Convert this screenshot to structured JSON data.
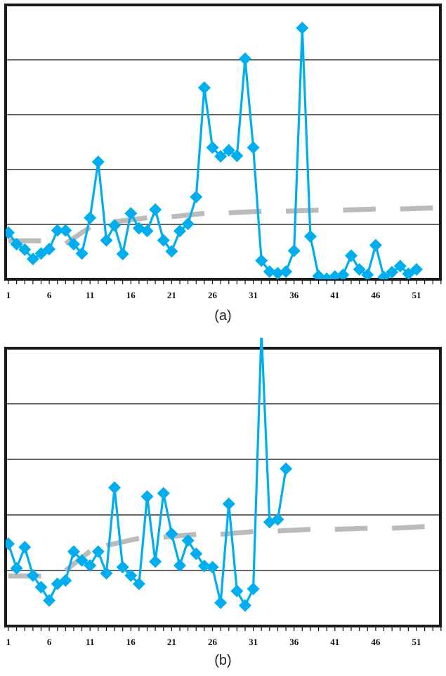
{
  "chart_data": [
    {
      "type": "line",
      "panel": "a",
      "caption": "(a)",
      "title": "",
      "xlabel": "",
      "ylabel": "",
      "x_tick_labels": [
        "1",
        "6",
        "11",
        "16",
        "21",
        "26",
        "31",
        "36",
        "41",
        "46",
        "51"
      ],
      "xlim": [
        1,
        54
      ],
      "ylim": [
        0,
        5
      ],
      "grid": {
        "horizontal": true,
        "lines": [
          1,
          2,
          3,
          4
        ]
      },
      "legend": null,
      "x": [
        1,
        2,
        3,
        4,
        5,
        6,
        7,
        8,
        9,
        10,
        11,
        12,
        13,
        14,
        15,
        16,
        17,
        18,
        19,
        20,
        21,
        22,
        23,
        24,
        25,
        26,
        27,
        28,
        29,
        30,
        31,
        32,
        33,
        34,
        35,
        36,
        37,
        38,
        39,
        40,
        41,
        42,
        43,
        44,
        45,
        46,
        47,
        48,
        49,
        50,
        51
      ],
      "series": [
        {
          "name": "observed",
          "style": "line-diamond",
          "color": "#00AEEF",
          "values": [
            0.85,
            0.64,
            0.54,
            0.37,
            0.47,
            0.55,
            0.89,
            0.89,
            0.64,
            0.47,
            1.12,
            2.14,
            0.71,
            0.98,
            0.46,
            1.2,
            0.93,
            0.88,
            1.27,
            0.71,
            0.51,
            0.88,
            1.01,
            1.5,
            3.49,
            2.4,
            2.24,
            2.35,
            2.25,
            4.02,
            2.4,
            0.34,
            0.14,
            0.11,
            0.14,
            0.52,
            4.58,
            0.78,
            0.06,
            0.01,
            0.05,
            0.08,
            0.43,
            0.18,
            0.08,
            0.62,
            0.04,
            0.13,
            0.24,
            0.1,
            0.18
          ]
        },
        {
          "name": "trend",
          "style": "dashed",
          "color": "#BBBBBB",
          "segments": [
            {
              "x": [
                1,
                5
              ],
              "values": [
                0.7,
                0.7
              ]
            },
            {
              "x": [
                8,
                11
              ],
              "values": [
                0.65,
                0.95
              ]
            },
            {
              "x": [
                14,
                18
              ],
              "values": [
                1.05,
                1.12
              ]
            },
            {
              "x": [
                21,
                25
              ],
              "values": [
                1.14,
                1.2
              ]
            },
            {
              "x": [
                28,
                32
              ],
              "values": [
                1.21,
                1.24
              ]
            },
            {
              "x": [
                35,
                39
              ],
              "values": [
                1.24,
                1.26
              ]
            },
            {
              "x": [
                42,
                46
              ],
              "values": [
                1.26,
                1.28
              ]
            },
            {
              "x": [
                49,
                53
              ],
              "values": [
                1.28,
                1.3
              ]
            }
          ]
        }
      ]
    },
    {
      "type": "line",
      "panel": "b",
      "caption": "(b)",
      "title": "",
      "xlabel": "",
      "ylabel": "",
      "x_tick_labels": [
        "1",
        "6",
        "11",
        "16",
        "21",
        "26",
        "31",
        "36",
        "41",
        "46",
        "51"
      ],
      "xlim": [
        1,
        54
      ],
      "ylim": [
        0,
        5
      ],
      "grid": {
        "horizontal": true,
        "lines": [
          1,
          2,
          3,
          4
        ]
      },
      "legend": null,
      "x": [
        1,
        2,
        3,
        4,
        5,
        6,
        7,
        8,
        9,
        10,
        11,
        12,
        13,
        14,
        15,
        16,
        17,
        18,
        19,
        20,
        21,
        22,
        23,
        24,
        25,
        26,
        27,
        28,
        29,
        30,
        31,
        32,
        33,
        34,
        35
      ],
      "series": [
        {
          "name": "observed",
          "style": "line-diamond",
          "color": "#00AEEF",
          "values": [
            1.48,
            1.04,
            1.42,
            0.91,
            0.7,
            0.46,
            0.76,
            0.82,
            1.34,
            1.18,
            1.09,
            1.34,
            0.95,
            2.49,
            1.06,
            0.91,
            0.76,
            2.33,
            1.16,
            2.39,
            1.66,
            1.09,
            1.54,
            1.3,
            1.08,
            1.06,
            0.42,
            2.2,
            0.63,
            0.37,
            0.67,
            5.3,
            1.87,
            1.92,
            2.83
          ]
        },
        {
          "name": "trend",
          "style": "dashed",
          "color": "#BBBBBB",
          "segments": [
            {
              "x": [
                1,
                5
              ],
              "values": [
                0.9,
                0.9
              ]
            },
            {
              "x": [
                8,
                11
              ],
              "values": [
                1.0,
                1.35
              ]
            },
            {
              "x": [
                13,
                17
              ],
              "values": [
                1.45,
                1.58
              ]
            },
            {
              "x": [
                20,
                24
              ],
              "values": [
                1.6,
                1.65
              ]
            },
            {
              "x": [
                27,
                31
              ],
              "values": [
                1.65,
                1.7
              ]
            },
            {
              "x": [
                34,
                38
              ],
              "values": [
                1.71,
                1.74
              ]
            },
            {
              "x": [
                41,
                45
              ],
              "values": [
                1.74,
                1.76
              ]
            },
            {
              "x": [
                48,
                52
              ],
              "values": [
                1.76,
                1.79
              ]
            }
          ]
        }
      ]
    }
  ]
}
